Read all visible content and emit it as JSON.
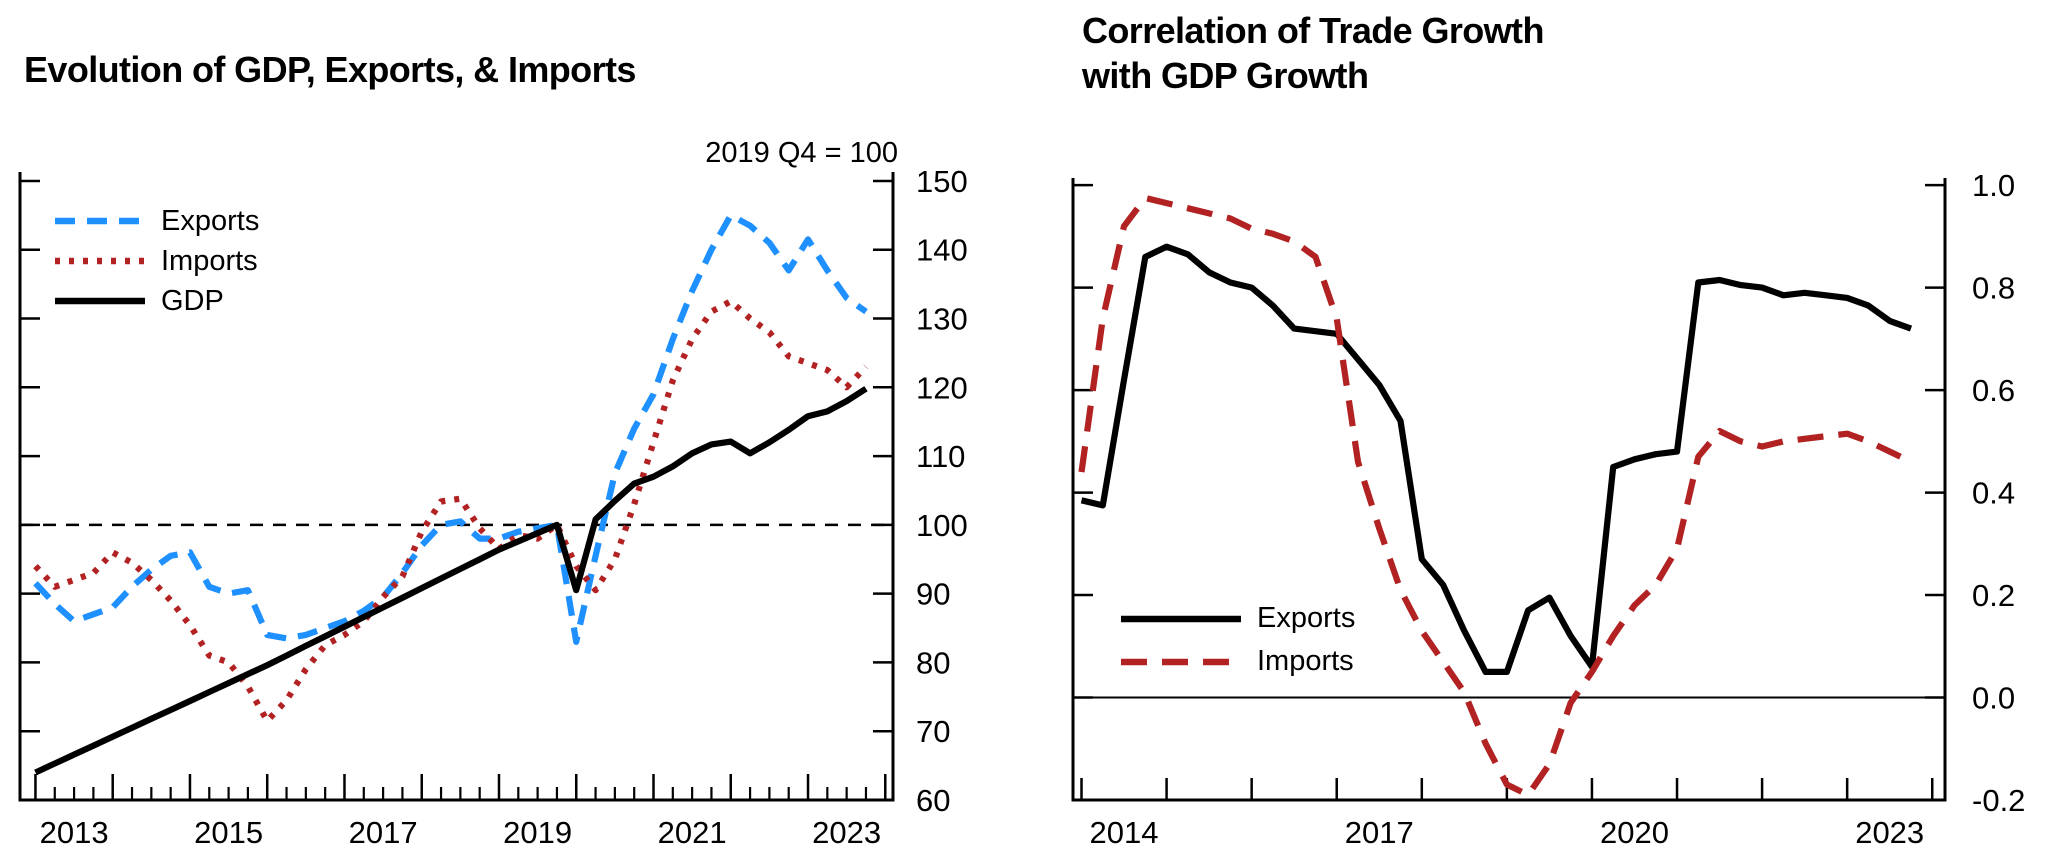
{
  "figure": {
    "background": "#ffffff",
    "axis_color": "#000000"
  },
  "chart_data": [
    {
      "id": "evolution",
      "type": "line",
      "title": "Evolution of GDP, Exports, & Imports",
      "note": "2019 Q4 = 100",
      "xlim": [
        2012.8,
        2024.1
      ],
      "ylim": [
        60,
        151.3
      ],
      "x_ticks": [
        2013,
        2014,
        2015,
        2016,
        2017,
        2018,
        2019,
        2020,
        2021,
        2022,
        2023,
        2024
      ],
      "x_minor_step": 0.25,
      "x_labels": [
        {
          "label": "2013",
          "at": 2013.5
        },
        {
          "label": "2015",
          "at": 2015.5
        },
        {
          "label": "2017",
          "at": 2017.5
        },
        {
          "label": "2019",
          "at": 2019.5
        },
        {
          "label": "2021",
          "at": 2021.5
        },
        {
          "label": "2023",
          "at": 2023.5
        }
      ],
      "y_ticks": [
        60,
        70,
        80,
        90,
        100,
        110,
        120,
        130,
        140,
        150
      ],
      "y_tick_labels": [
        "60",
        "70",
        "80",
        "90",
        "100",
        "110",
        "120",
        "130",
        "140",
        "150"
      ],
      "y_label_side": "right",
      "reference_line": {
        "value": 100,
        "style": "dashed"
      },
      "legend_position": "top-left",
      "series": [
        {
          "name": "Exports",
          "color": "#1E90FF",
          "line_style": "dashed",
          "x_start": 2013.0,
          "x_step": 0.25,
          "values": [
            91.5,
            88.5,
            86,
            87,
            88,
            91,
            93.5,
            95.5,
            96,
            91,
            90,
            90.5,
            84,
            83.5,
            84,
            85,
            86,
            87.5,
            89.5,
            93,
            97,
            100,
            100.5,
            98,
            98,
            99,
            99.5,
            100,
            83,
            95.5,
            107.5,
            114,
            119,
            127,
            134,
            140,
            145,
            143.5,
            141,
            137,
            141.5,
            137,
            133,
            131
          ]
        },
        {
          "name": "Imports",
          "color": "#B22222",
          "line_style": "dotted",
          "x_start": 2013.0,
          "x_step": 0.25,
          "values": [
            94,
            91,
            92,
            93,
            96,
            94.5,
            92,
            89,
            85.4,
            81,
            80,
            76.5,
            71.5,
            74.5,
            79,
            82.5,
            84,
            86,
            89.5,
            92.5,
            99,
            103.4,
            103.8,
            99.5,
            96.5,
            98.5,
            98,
            100,
            94,
            90.5,
            95,
            103,
            112,
            121,
            127,
            131,
            132.5,
            130,
            128,
            124.5,
            123.5,
            122.5,
            120,
            123
          ]
        },
        {
          "name": "GDP",
          "color": "#000000",
          "line_style": "solid",
          "x_start": 2013.0,
          "x_step": 0.25,
          "values": [
            64,
            65.3,
            66.6,
            67.9,
            69.2,
            70.5,
            71.8,
            73.1,
            74.4,
            75.7,
            77,
            78.3,
            79.6,
            81,
            82.4,
            83.8,
            85.2,
            86.6,
            88,
            89.4,
            90.8,
            92.2,
            93.6,
            95,
            96.4,
            97.6,
            98.8,
            100,
            90.5,
            100.8,
            103.5,
            106,
            107,
            108.5,
            110.4,
            111.7,
            112.1,
            110.4,
            112,
            113.8,
            115.8,
            116.5,
            118,
            119.8
          ]
        }
      ]
    },
    {
      "id": "correlation",
      "type": "line",
      "title_line1": "Correlation of Trade Growth",
      "title_line2": "with GDP Growth",
      "xlim": [
        2013.9,
        2024.15
      ],
      "ylim": [
        -0.2,
        1.014
      ],
      "x_ticks": [
        2014,
        2015,
        2016,
        2017,
        2018,
        2019,
        2020,
        2021,
        2022,
        2023,
        2024
      ],
      "x_minor_step": 0,
      "x_labels": [
        {
          "label": "2014",
          "at": 2014.5
        },
        {
          "label": "2017",
          "at": 2017.5
        },
        {
          "label": "2020",
          "at": 2020.5
        },
        {
          "label": "2023",
          "at": 2023.5
        }
      ],
      "y_ticks": [
        -0.2,
        0,
        0.2,
        0.4,
        0.6,
        0.8,
        1.0
      ],
      "y_tick_labels": [
        "-0.2",
        "0.0",
        "0.2",
        "0.4",
        "0.6",
        "0.8",
        "1.0"
      ],
      "y_label_side": "right",
      "reference_line": {
        "value": 0,
        "style": "solid"
      },
      "legend_position": "center-left",
      "series": [
        {
          "name": "Exports",
          "color": "#000000",
          "line_style": "solid",
          "x_start": 2014.0,
          "x_step": 0.25,
          "values": [
            0.385,
            0.375,
            0.62,
            0.86,
            0.88,
            0.865,
            0.83,
            0.81,
            0.8,
            0.765,
            0.72,
            0.715,
            0.71,
            0.66,
            0.61,
            0.54,
            0.27,
            0.22,
            0.13,
            0.05,
            0.05,
            0.17,
            0.195,
            0.12,
            0.06,
            0.45,
            0.465,
            0.475,
            0.48,
            0.81,
            0.815,
            0.805,
            0.8,
            0.785,
            0.79,
            0.785,
            0.78,
            0.765,
            0.735,
            0.72
          ]
        },
        {
          "name": "Imports",
          "color": "#B22222",
          "line_style": "long-dashed",
          "x_start": 2014.0,
          "x_step": 0.25,
          "values": [
            0.44,
            0.74,
            0.92,
            0.975,
            0.965,
            0.955,
            0.945,
            0.935,
            0.915,
            0.905,
            0.89,
            0.86,
            0.74,
            0.46,
            0.33,
            0.21,
            0.13,
            0.07,
            0.01,
            -0.09,
            -0.17,
            -0.19,
            -0.13,
            -0.01,
            0.05,
            0.12,
            0.18,
            0.22,
            0.29,
            0.47,
            0.52,
            0.5,
            0.49,
            0.5,
            0.505,
            0.51,
            0.515,
            0.5,
            0.48,
            0.46
          ]
        }
      ]
    }
  ]
}
